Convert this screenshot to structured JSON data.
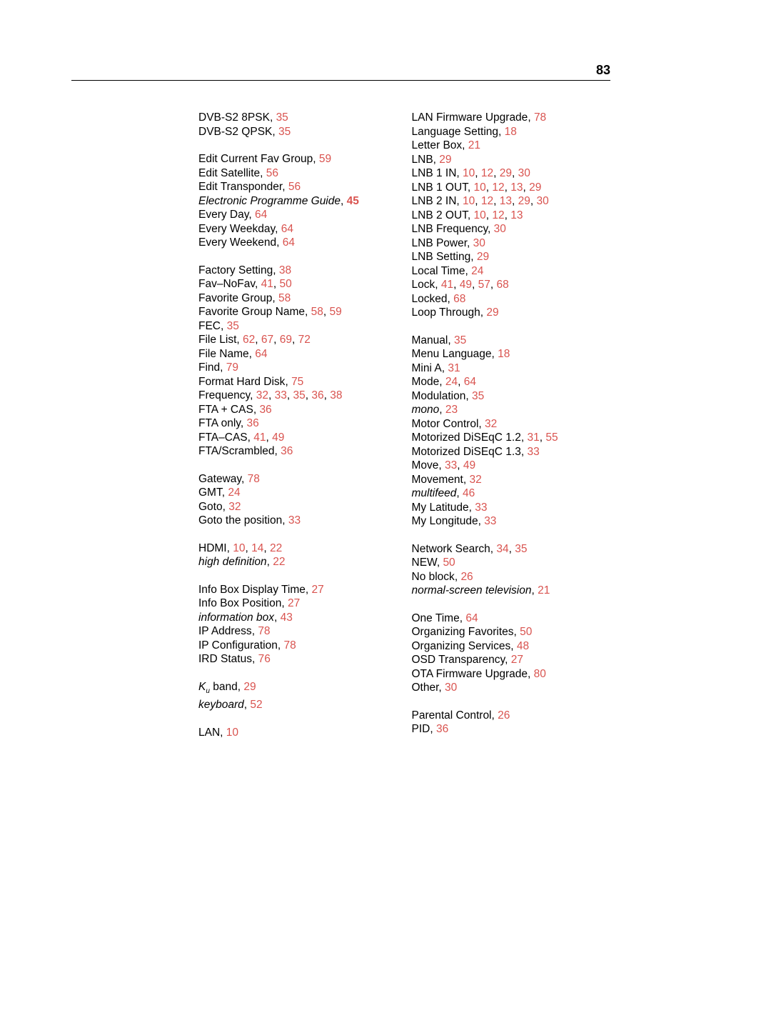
{
  "page_number": "83",
  "link_color": "#d9534f",
  "text_color": "#000000",
  "background_color": "#ffffff",
  "font_size_body": 15.5,
  "font_size_pagenum": 18,
  "line_height": 19.5,
  "columns": [
    [
      [
        {
          "term": "DVB-S2 8PSK",
          "pages": [
            "35"
          ]
        },
        {
          "term": "DVB-S2 QPSK",
          "pages": [
            "35"
          ]
        }
      ],
      [
        {
          "term": "Edit Current Fav Group",
          "pages": [
            "59"
          ]
        },
        {
          "term": "Edit Satellite",
          "pages": [
            "56"
          ]
        },
        {
          "term": "Edit Transponder",
          "pages": [
            "56"
          ]
        },
        {
          "term": "Electronic Programme Guide",
          "italic": true,
          "pages": [
            "45"
          ],
          "bold_pages": true
        },
        {
          "term": "Every Day",
          "pages": [
            "64"
          ]
        },
        {
          "term": "Every Weekday",
          "pages": [
            "64"
          ]
        },
        {
          "term": "Every Weekend",
          "pages": [
            "64"
          ]
        }
      ],
      [
        {
          "term": "Factory Setting",
          "pages": [
            "38"
          ]
        },
        {
          "term": "Fav–NoFav",
          "pages": [
            "41",
            "50"
          ]
        },
        {
          "term": "Favorite Group",
          "pages": [
            "58"
          ]
        },
        {
          "term": "Favorite Group Name",
          "pages": [
            "58",
            "59"
          ]
        },
        {
          "term": "FEC",
          "pages": [
            "35"
          ]
        },
        {
          "term": "File List",
          "pages": [
            "62",
            "67",
            "69",
            "72"
          ]
        },
        {
          "term": "File Name",
          "pages": [
            "64"
          ]
        },
        {
          "term": "Find",
          "pages": [
            "79"
          ]
        },
        {
          "term": "Format Hard Disk",
          "pages": [
            "75"
          ]
        },
        {
          "term": "Frequency",
          "pages": [
            "32",
            "33",
            "35",
            "36",
            "38"
          ]
        },
        {
          "term": "FTA + CAS",
          "pages": [
            "36"
          ]
        },
        {
          "term": "FTA only",
          "pages": [
            "36"
          ]
        },
        {
          "term": "FTA–CAS",
          "pages": [
            "41",
            "49"
          ]
        },
        {
          "term": "FTA/Scrambled",
          "pages": [
            "36"
          ]
        }
      ],
      [
        {
          "term": "Gateway",
          "pages": [
            "78"
          ]
        },
        {
          "term": "GMT",
          "pages": [
            "24"
          ]
        },
        {
          "term": "Goto",
          "pages": [
            "32"
          ]
        },
        {
          "term": "Goto the position",
          "pages": [
            "33"
          ]
        }
      ],
      [
        {
          "term": "HDMI",
          "pages": [
            "10",
            "14",
            "22"
          ]
        },
        {
          "term": "high definition",
          "italic": true,
          "pages": [
            "22"
          ]
        }
      ],
      [
        {
          "term": "Info Box Display Time",
          "pages": [
            "27"
          ]
        },
        {
          "term": "Info Box Position",
          "pages": [
            "27"
          ]
        },
        {
          "term": "information box",
          "italic": true,
          "pages": [
            "43"
          ]
        },
        {
          "term": "IP Address",
          "pages": [
            "78"
          ]
        },
        {
          "term": "IP Configuration",
          "pages": [
            "78"
          ]
        },
        {
          "term": "IRD Status",
          "pages": [
            "76"
          ]
        }
      ],
      [
        {
          "term_html": "<span class=\"italic\">K<span class=\"sub\">u</span></span> band",
          "pages": [
            "29"
          ]
        },
        {
          "term": "keyboard",
          "italic": true,
          "pages": [
            "52"
          ]
        }
      ],
      [
        {
          "term": "LAN",
          "pages": [
            "10"
          ]
        }
      ]
    ],
    [
      [
        {
          "term": "LAN Firmware Upgrade",
          "pages": [
            "78"
          ]
        },
        {
          "term": "Language Setting",
          "pages": [
            "18"
          ]
        },
        {
          "term": "Letter Box",
          "pages": [
            "21"
          ]
        },
        {
          "term": "LNB",
          "pages": [
            "29"
          ]
        },
        {
          "term": "LNB 1 IN",
          "pages": [
            "10",
            "12",
            "29",
            "30"
          ]
        },
        {
          "term": "LNB 1 OUT",
          "pages": [
            "10",
            "12",
            "13",
            "29"
          ]
        },
        {
          "term": "LNB 2 IN",
          "pages": [
            "10",
            "12",
            "13",
            "29",
            "30"
          ]
        },
        {
          "term": "LNB 2 OUT",
          "pages": [
            "10",
            "12",
            "13"
          ]
        },
        {
          "term": "LNB Frequency",
          "pages": [
            "30"
          ]
        },
        {
          "term": "LNB Power",
          "pages": [
            "30"
          ]
        },
        {
          "term": "LNB Setting",
          "pages": [
            "29"
          ]
        },
        {
          "term": "Local Time",
          "pages": [
            "24"
          ]
        },
        {
          "term": "Lock",
          "pages": [
            "41",
            "49",
            "57",
            "68"
          ]
        },
        {
          "term": "Locked",
          "pages": [
            "68"
          ]
        },
        {
          "term": "Loop Through",
          "pages": [
            "29"
          ]
        }
      ],
      [
        {
          "term": "Manual",
          "pages": [
            "35"
          ]
        },
        {
          "term": "Menu Language",
          "pages": [
            "18"
          ]
        },
        {
          "term": "Mini A",
          "pages": [
            "31"
          ]
        },
        {
          "term": "Mode",
          "pages": [
            "24",
            "64"
          ]
        },
        {
          "term": "Modulation",
          "pages": [
            "35"
          ]
        },
        {
          "term": "mono",
          "italic": true,
          "pages": [
            "23"
          ]
        },
        {
          "term": "Motor Control",
          "pages": [
            "32"
          ]
        },
        {
          "term": "Motorized DiSEqC 1.2",
          "pages": [
            "31",
            "55"
          ]
        },
        {
          "term": "Motorized DiSEqC 1.3",
          "pages": [
            "33"
          ]
        },
        {
          "term": "Move",
          "pages": [
            "33",
            "49"
          ]
        },
        {
          "term": "Movement",
          "pages": [
            "32"
          ]
        },
        {
          "term": "multifeed",
          "italic": true,
          "pages": [
            "46"
          ]
        },
        {
          "term": "My Latitude",
          "pages": [
            "33"
          ]
        },
        {
          "term": "My Longitude",
          "pages": [
            "33"
          ]
        }
      ],
      [
        {
          "term": "Network Search",
          "pages": [
            "34",
            "35"
          ]
        },
        {
          "term": "NEW",
          "pages": [
            "50"
          ]
        },
        {
          "term": "No block",
          "pages": [
            "26"
          ]
        },
        {
          "term": "normal-screen television",
          "italic": true,
          "pages": [
            "21"
          ]
        }
      ],
      [
        {
          "term": "One Time",
          "pages": [
            "64"
          ]
        },
        {
          "term": "Organizing Favorites",
          "pages": [
            "50"
          ]
        },
        {
          "term": "Organizing Services",
          "pages": [
            "48"
          ]
        },
        {
          "term": "OSD Transparency",
          "pages": [
            "27"
          ]
        },
        {
          "term": "OTA Firmware Upgrade",
          "pages": [
            "80"
          ]
        },
        {
          "term": "Other",
          "pages": [
            "30"
          ]
        }
      ],
      [
        {
          "term": "Parental Control",
          "pages": [
            "26"
          ]
        },
        {
          "term": "PID",
          "pages": [
            "36"
          ]
        }
      ]
    ]
  ]
}
